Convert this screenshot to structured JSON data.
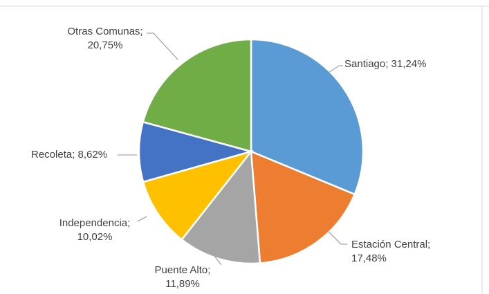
{
  "chart_data": {
    "type": "pie",
    "title": "",
    "start_angle_deg": 0,
    "direction": "clockwise",
    "slices": [
      {
        "name": "Santiago",
        "value": 31.24,
        "label_line1": "Santiago; 31,24%",
        "label_line2": "",
        "color": "#5b9bd5"
      },
      {
        "name": "Estación Central",
        "value": 17.48,
        "label_line1": "Estación Central;",
        "label_line2": "17,48%",
        "color": "#ed7d31"
      },
      {
        "name": "Puente Alto",
        "value": 11.89,
        "label_line1": "Puente Alto;",
        "label_line2": "11,89%",
        "color": "#a5a5a5"
      },
      {
        "name": "Independencia",
        "value": 10.02,
        "label_line1": "Independencia;",
        "label_line2": "10,02%",
        "color": "#ffc000"
      },
      {
        "name": "Recoleta",
        "value": 8.62,
        "label_line1": "Recoleta; 8,62%",
        "label_line2": "",
        "color": "#4472c4"
      },
      {
        "name": "Otras Comunas",
        "value": 20.75,
        "label_line1": "Otras Comunas;",
        "label_line2": "20,75%",
        "color": "#70ad47"
      }
    ]
  }
}
